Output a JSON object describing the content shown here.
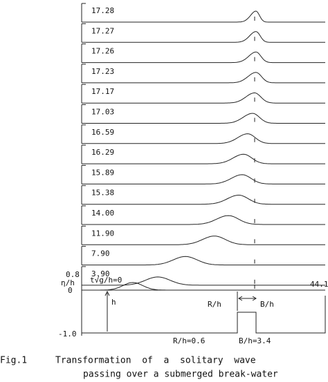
{
  "panels": [
    {
      "label": "17.28"
    },
    {
      "label": "17.27"
    },
    {
      "label": "17.26"
    },
    {
      "label": "17.23"
    },
    {
      "label": "17.17"
    },
    {
      "label": "17.03"
    },
    {
      "label": "16.59"
    },
    {
      "label": "16.29"
    },
    {
      "label": "15.89"
    },
    {
      "label": "15.38"
    },
    {
      "label": "14.00"
    },
    {
      "label": "11.90"
    },
    {
      "label": "7.90"
    },
    {
      "label": "3.90"
    }
  ],
  "bottom_panel": {
    "label": "t√g/h=0",
    "y_top_label": "0.8",
    "y_axis_label": "η/h",
    "y_zero_label": "0",
    "y_bottom_label": "-1.0",
    "x_end_label": "44.1",
    "depth_label": "h",
    "submergence_label": "R/h",
    "width_label": "B/h",
    "submergence_value": "R/h=0.6",
    "width_value": "B/h=3.4"
  },
  "caption": {
    "number": "Fig.1",
    "line1": "Transformation  of  a  solitary  wave",
    "line2": "passing over a submerged break-water"
  }
}
